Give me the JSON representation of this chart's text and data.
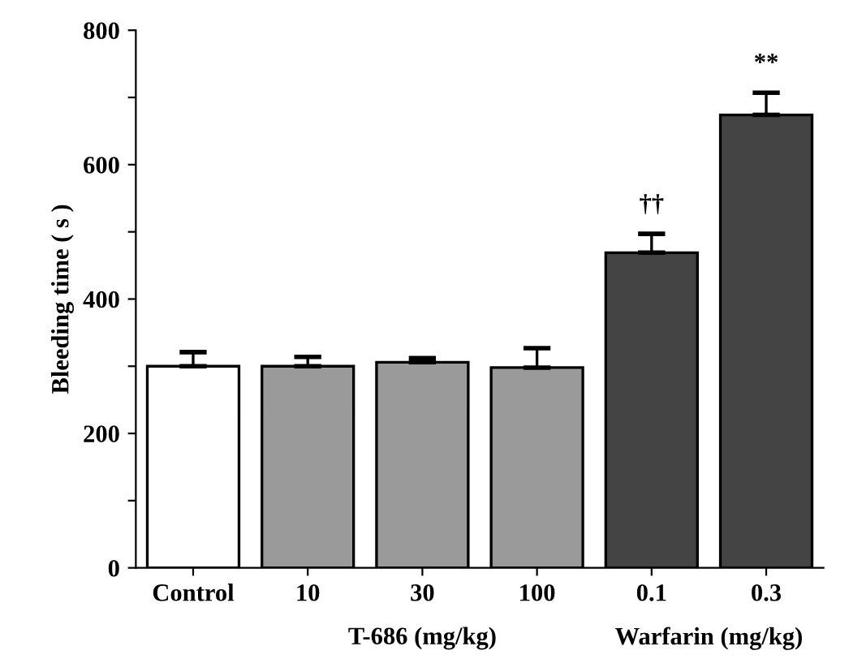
{
  "chart_data": {
    "type": "bar",
    "categories": [
      "Control",
      "10",
      "30",
      "100",
      "0.1",
      "0.3"
    ],
    "values": [
      300,
      300,
      306,
      298,
      469,
      674
    ],
    "errors": [
      [
        300,
        321
      ],
      [
        300,
        314
      ],
      [
        306,
        312
      ],
      [
        298,
        327
      ],
      [
        469,
        497
      ],
      [
        674,
        707
      ]
    ],
    "colors": [
      "#ffffff",
      "#9a9a9a",
      "#9a9a9a",
      "#9a9a9a",
      "#444444",
      "#444444"
    ],
    "ylabel": "Bleeding time ( s )",
    "ylim": [
      0,
      800
    ],
    "yticks": [
      0,
      {
        "value": 100,
        "label": null
      },
      200,
      {
        "value": 300,
        "label": null
      },
      400,
      {
        "value": 500,
        "label": null
      },
      600,
      {
        "value": 700,
        "label": null
      },
      800
    ],
    "annotations": [
      {
        "text": "††",
        "x": "0.1",
        "y": 497
      },
      {
        "text": "**",
        "x": "0.3",
        "y": 707
      },
      "T-686 (mg/kg)",
      "Warfarin (mg/kg)"
    ],
    "grid": false,
    "legend": false
  }
}
